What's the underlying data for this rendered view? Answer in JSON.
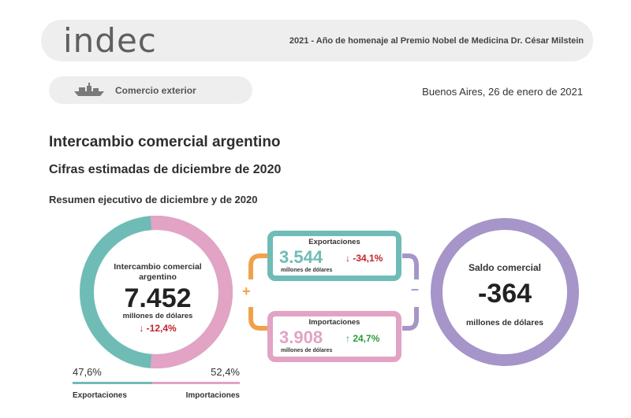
{
  "header": {
    "logo": "indec",
    "homenaje": "2021 - Año de homenaje al Premio Nobel de Medicina Dr. César Milstein"
  },
  "section": {
    "icon": "ship-icon",
    "label": "Comercio exterior"
  },
  "date": "Buenos Aires, 26 de enero de 2021",
  "titles": {
    "title": "Intercambio comercial argentino",
    "subtitle": "Cifras estimadas de diciembre de 2020",
    "resumen": "Resumen ejecutivo de diciembre y de 2020"
  },
  "intercambio": {
    "label": "Intercambio comercial argentino",
    "value": "7.452",
    "unit": "millones de dólares",
    "change": "↓ -12,4%",
    "exportaciones_share": 47.6,
    "importaciones_share": 52.4,
    "pct_exportaciones": "47,6%",
    "pct_importaciones": "52,4%",
    "label_exportaciones": "Exportaciones",
    "label_importaciones": "Importaciones"
  },
  "exportaciones": {
    "title": "Exportaciones",
    "value": "3.544",
    "unit": "millones de dólares",
    "change": "↓ -34,1%"
  },
  "importaciones": {
    "title": "Importaciones",
    "value": "3.908",
    "unit": "millones de dólares",
    "change": "↑ 24,7%"
  },
  "operators": {
    "plus": "+",
    "minus": "–"
  },
  "saldo": {
    "label": "Saldo comercial",
    "value": "-364",
    "unit": "millones de dólares"
  },
  "colors": {
    "exportaciones": "#6fbcb6",
    "importaciones": "#e2a3c5",
    "saldo": "#a595c8",
    "connector": "#f0a24a",
    "negative": "#c0232c",
    "positive": "#2d9a3c"
  }
}
